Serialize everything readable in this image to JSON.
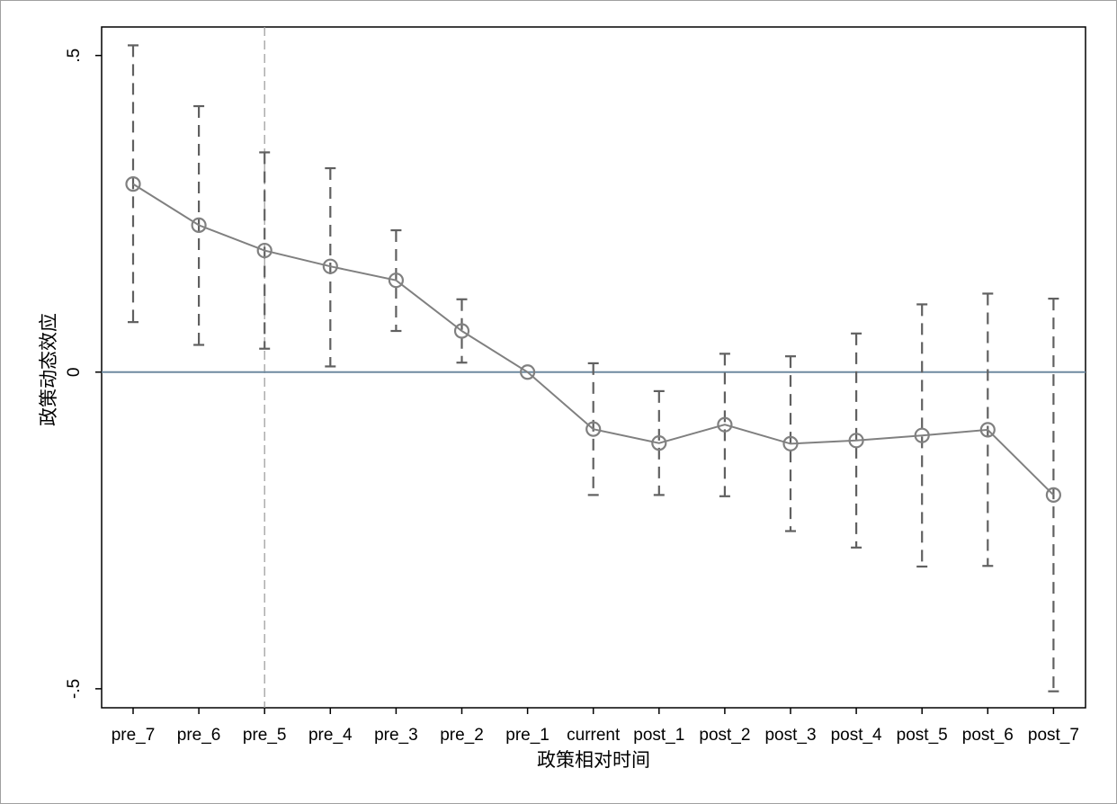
{
  "chart_data": {
    "type": "line",
    "title": "",
    "xlabel": "政策相对时间",
    "ylabel": "政策动态效应",
    "categories": [
      "pre_7",
      "pre_6",
      "pre_5",
      "pre_4",
      "pre_3",
      "pre_2",
      "pre_1",
      "current",
      "post_1",
      "post_2",
      "post_3",
      "post_4",
      "post_5",
      "post_6",
      "post_7"
    ],
    "series": [
      {
        "values": [
          0.297,
          0.232,
          0.192,
          0.167,
          0.145,
          0.065,
          0.0,
          -0.09,
          -0.112,
          -0.083,
          -0.113,
          -0.108,
          -0.1,
          -0.091,
          -0.194
        ],
        "ci_upper": [
          0.516,
          0.42,
          0.347,
          0.322,
          0.224,
          0.115,
          0.0,
          0.014,
          -0.03,
          0.029,
          0.025,
          0.061,
          0.107,
          0.124,
          0.116
        ],
        "ci_lower": [
          0.079,
          0.043,
          0.037,
          0.009,
          0.065,
          0.015,
          0.0,
          -0.194,
          -0.194,
          -0.196,
          -0.251,
          -0.277,
          -0.307,
          -0.306,
          -0.504
        ]
      }
    ],
    "yticks": [
      -0.5,
      0,
      0.5
    ],
    "ytick_labels": [
      "-.5",
      "0",
      ".5"
    ],
    "ylim": [
      -0.53,
      0.545
    ],
    "reference_lines": {
      "horizontal_y": 0,
      "vertical_category": "pre_5"
    },
    "grid": false,
    "legend": "none",
    "colors": {
      "series": "#808080",
      "ci": "#606060",
      "zero_line": "#6f8aa0",
      "vline": "#a0a0a0",
      "axis": "#000000"
    }
  }
}
